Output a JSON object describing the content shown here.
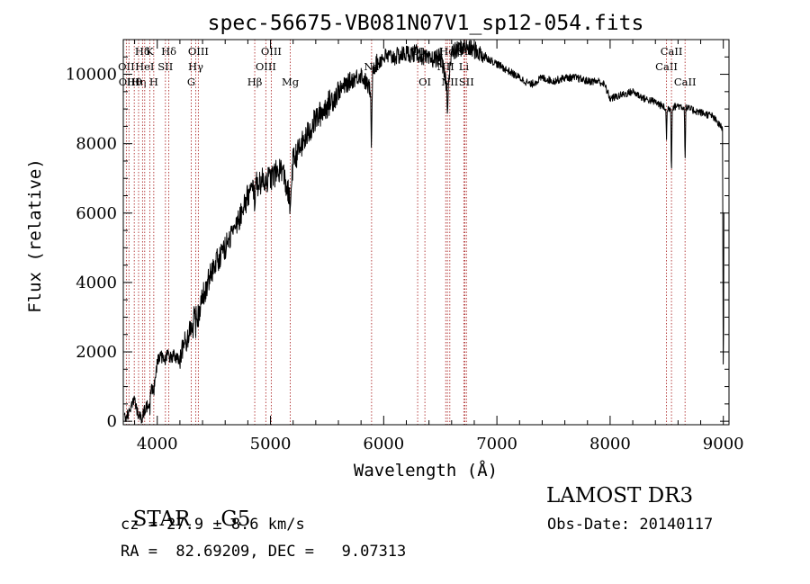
{
  "chart_data": {
    "type": "line",
    "title": "spec-56675-VB081N07V1_sp12-054.fits",
    "xlabel": "Wavelength (Å)",
    "ylabel": "Flux (relative)",
    "xlim": [
      3700,
      9050
    ],
    "ylim": [
      -100,
      11000
    ],
    "x_ticks": [
      4000,
      5000,
      6000,
      7000,
      8000,
      9000
    ],
    "y_ticks": [
      0,
      2000,
      4000,
      6000,
      8000,
      10000
    ],
    "grid": false,
    "series": [
      {
        "name": "spectrum",
        "color": "#000000",
        "anchors": [
          [
            3710,
            100
          ],
          [
            3760,
            300
          ],
          [
            3800,
            600
          ],
          [
            3830,
            200
          ],
          [
            3860,
            100
          ],
          [
            3890,
            300
          ],
          [
            3920,
            500
          ],
          [
            3950,
            900
          ],
          [
            3980,
            1200
          ],
          [
            4000,
            1700
          ],
          [
            4030,
            1900
          ],
          [
            4060,
            1700
          ],
          [
            4090,
            1900
          ],
          [
            4110,
            1800
          ],
          [
            4150,
            1900
          ],
          [
            4200,
            1700
          ],
          [
            4230,
            2100
          ],
          [
            4260,
            2400
          ],
          [
            4290,
            2600
          ],
          [
            4320,
            2800
          ],
          [
            4340,
            3400
          ],
          [
            4360,
            3000
          ],
          [
            4400,
            3600
          ],
          [
            4450,
            4000
          ],
          [
            4500,
            4500
          ],
          [
            4600,
            5000
          ],
          [
            4700,
            5700
          ],
          [
            4800,
            6500
          ],
          [
            4900,
            6900
          ],
          [
            5000,
            7000
          ],
          [
            5100,
            7300
          ],
          [
            5170,
            6400
          ],
          [
            5200,
            7500
          ],
          [
            5300,
            8100
          ],
          [
            5400,
            8700
          ],
          [
            5500,
            9100
          ],
          [
            5600,
            9500
          ],
          [
            5700,
            9800
          ],
          [
            5800,
            10000
          ],
          [
            5890,
            9500
          ],
          [
            5900,
            10200
          ],
          [
            6000,
            10500
          ],
          [
            6100,
            10500
          ],
          [
            6200,
            10600
          ],
          [
            6300,
            10600
          ],
          [
            6400,
            10400
          ],
          [
            6500,
            10500
          ],
          [
            6563,
            9600
          ],
          [
            6600,
            10600
          ],
          [
            6700,
            10800
          ],
          [
            6800,
            10700
          ],
          [
            6900,
            10500
          ],
          [
            7000,
            10300
          ],
          [
            7100,
            10100
          ],
          [
            7200,
            9900
          ],
          [
            7300,
            9700
          ],
          [
            7400,
            9900
          ],
          [
            7500,
            9800
          ],
          [
            7600,
            9900
          ],
          [
            7700,
            9900
          ],
          [
            7800,
            9800
          ],
          [
            7900,
            9800
          ],
          [
            7950,
            9700
          ],
          [
            8000,
            9300
          ],
          [
            8100,
            9400
          ],
          [
            8200,
            9500
          ],
          [
            8300,
            9300
          ],
          [
            8400,
            9200
          ],
          [
            8500,
            9000
          ],
          [
            8600,
            9100
          ],
          [
            8700,
            9000
          ],
          [
            8800,
            8900
          ],
          [
            8900,
            8800
          ],
          [
            8950,
            8600
          ],
          [
            9000,
            8400
          ]
        ],
        "absorption_dips": [
          [
            3934,
            400
          ],
          [
            3969,
            400
          ],
          [
            4340,
            700
          ],
          [
            4861,
            500
          ],
          [
            5175,
            900
          ],
          [
            5890,
            1500
          ],
          [
            5896,
            1200
          ],
          [
            6563,
            900
          ],
          [
            8498,
            900
          ],
          [
            8542,
            2000
          ],
          [
            8662,
            1600
          ],
          [
            9000,
            8000
          ]
        ]
      }
    ],
    "line_markers": [
      {
        "wavelength": 3727,
        "label": "OII",
        "row": 1
      },
      {
        "wavelength": 3750,
        "label": "OIII",
        "row": 2
      },
      {
        "wavelength": 3797,
        "label": "Hθ",
        "row": 2
      },
      {
        "wavelength": 3835,
        "label": "Hη",
        "row": 2
      },
      {
        "wavelength": 3870,
        "label": "Hδ",
        "row": 0
      },
      {
        "wavelength": 3889,
        "label": "HeI",
        "row": 1
      },
      {
        "wavelength": 3934,
        "label": "K",
        "row": 0
      },
      {
        "wavelength": 3969,
        "label": "H",
        "row": 2
      },
      {
        "wavelength": 4072,
        "label": "SII",
        "row": 1
      },
      {
        "wavelength": 4102,
        "label": "Hδ",
        "row": 0
      },
      {
        "wavelength": 4300,
        "label": "G",
        "row": 2
      },
      {
        "wavelength": 4340,
        "label": "Hγ",
        "row": 1
      },
      {
        "wavelength": 4363,
        "label": "OIII",
        "row": 0
      },
      {
        "wavelength": 4861,
        "label": "Hβ",
        "row": 2
      },
      {
        "wavelength": 4959,
        "label": "OIII",
        "row": 1
      },
      {
        "wavelength": 5007,
        "label": "OIII",
        "row": 0
      },
      {
        "wavelength": 5175,
        "label": "Mg",
        "row": 2
      },
      {
        "wavelength": 5893,
        "label": "Na",
        "row": 1
      },
      {
        "wavelength": 6300,
        "label": "OI",
        "row": 0
      },
      {
        "wavelength": 6364,
        "label": "OI",
        "row": 2
      },
      {
        "wavelength": 6548,
        "label": "NII",
        "row": 1
      },
      {
        "wavelength": 6563,
        "label": "Hα",
        "row": 0
      },
      {
        "wavelength": 6584,
        "label": "NII",
        "row": 2
      },
      {
        "wavelength": 6708,
        "label": "Li",
        "row": 1
      },
      {
        "wavelength": 6717,
        "label": "SII",
        "row": 0
      },
      {
        "wavelength": 6731,
        "label": "SII",
        "row": 2
      },
      {
        "wavelength": 8498,
        "label": "CaII",
        "row": 1
      },
      {
        "wavelength": 8542,
        "label": "CaII",
        "row": 0
      },
      {
        "wavelength": 8662,
        "label": "CaII",
        "row": 2
      }
    ]
  },
  "info": {
    "class_label": "STAR",
    "subclass": "G5",
    "survey": "LAMOST DR3",
    "cz": "cz = 27.9 ± 8.6 km/s",
    "obs_date": "Obs-Date: 20140117",
    "coords": "RA =  82.69209, DEC =   9.07313"
  },
  "colors": {
    "marker_line": "#b03030",
    "axis": "#000000"
  }
}
